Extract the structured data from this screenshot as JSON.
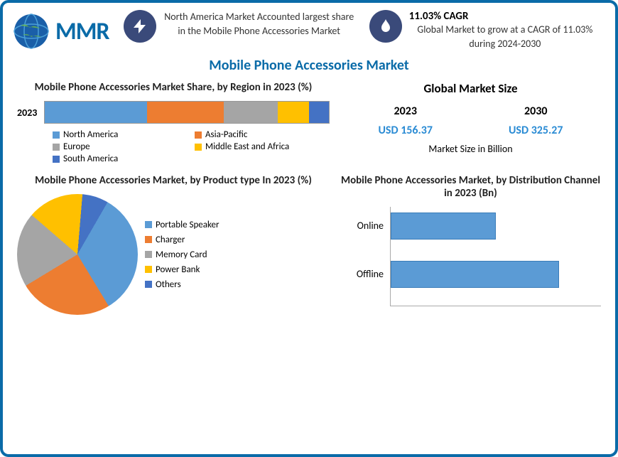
{
  "logo_text": "MMR",
  "stat1": {
    "text": "North America Market Accounted largest share in the Mobile Phone Accessories Market"
  },
  "stat2": {
    "title": "11.03% CAGR",
    "text": "Global Market to grow at a CAGR of 11.03% during 2024-2030"
  },
  "main_title": "Mobile Phone Accessories Market",
  "region_chart": {
    "title": "Mobile Phone Accessories Market Share, by Region in 2023 (%)",
    "year_label": "2023",
    "segments": [
      {
        "label": "North America",
        "color": "#5b9bd5",
        "pct": 36
      },
      {
        "label": "Asia-Pacific",
        "color": "#ed7d31",
        "pct": 27
      },
      {
        "label": "Europe",
        "color": "#a5a5a5",
        "pct": 19
      },
      {
        "label": "Middle East and Africa",
        "color": "#ffc000",
        "pct": 11
      },
      {
        "label": "South America",
        "color": "#4472c4",
        "pct": 7
      }
    ]
  },
  "global_size": {
    "title": "Global Market Size",
    "year1": "2023",
    "val1": "USD 156.37",
    "year2": "2030",
    "val2": "USD 325.27",
    "unit": "Market Size in Billion"
  },
  "product_chart": {
    "title": "Mobile Phone Accessories Market, by Product type In 2023 (%)",
    "slices": [
      {
        "label": "Portable Speaker",
        "color": "#5b9bd5",
        "pct": 33
      },
      {
        "label": "Charger",
        "color": "#ed7d31",
        "pct": 25
      },
      {
        "label": "Memory Card",
        "color": "#a5a5a5",
        "pct": 20
      },
      {
        "label": "Power Bank",
        "color": "#ffc000",
        "pct": 15
      },
      {
        "label": "Others",
        "color": "#4472c4",
        "pct": 7
      }
    ]
  },
  "dist_chart": {
    "title": "Mobile Phone Accessories Market, by Distribution Channel in 2023 (Bn)",
    "bars": [
      {
        "label": "Online",
        "value": 60
      },
      {
        "label": "Offline",
        "value": 96
      }
    ],
    "bar_color": "#5b9bd5",
    "max": 120
  },
  "colors": {
    "border": "#0a6ba8",
    "accent": "#2a8bd4"
  }
}
